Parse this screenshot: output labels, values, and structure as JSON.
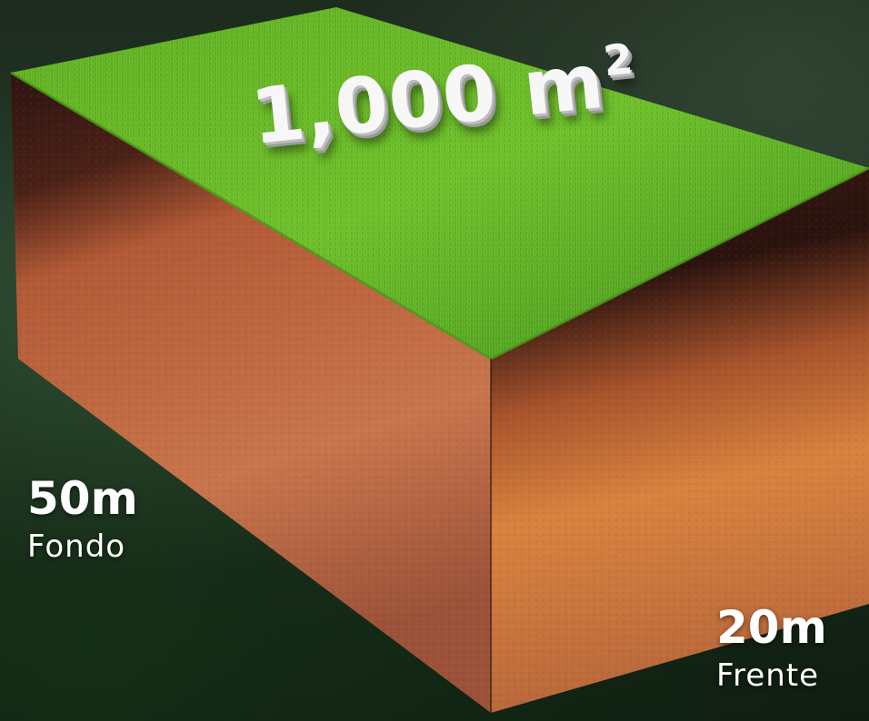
{
  "area": {
    "number": "1,000 m",
    "superscript": "2"
  },
  "depth": {
    "value": "50m",
    "label": "Fondo"
  },
  "front": {
    "value": "20m",
    "label": "Frente"
  },
  "colors": {
    "grass_light": "#6fbf2c",
    "grass_dark": "#3f8f1c",
    "topsoil": "#3a1a12",
    "subsoil": "#c0643a",
    "text": "#ffffff"
  }
}
